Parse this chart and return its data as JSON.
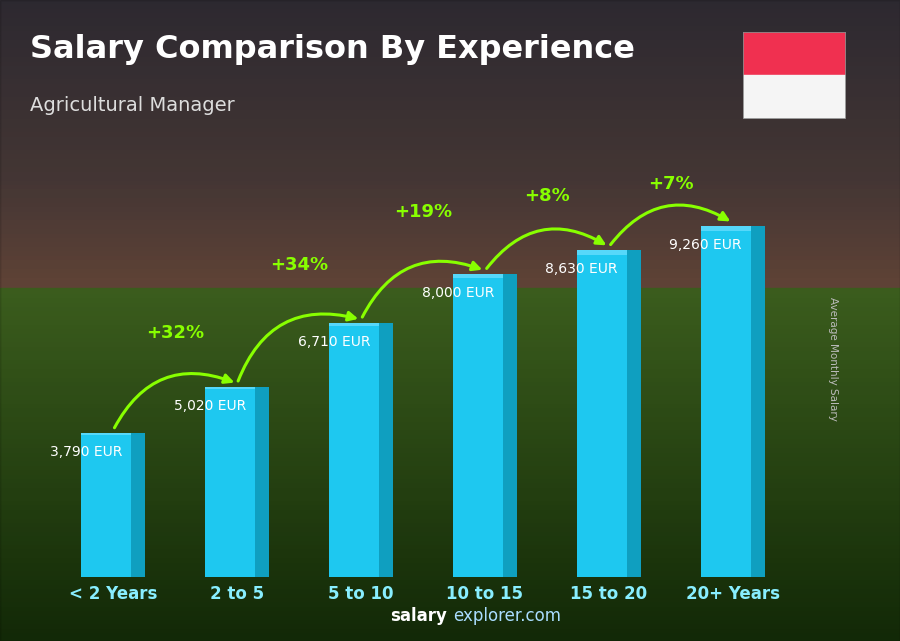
{
  "title": "Salary Comparison By Experience",
  "subtitle": "Agricultural Manager",
  "categories": [
    "< 2 Years",
    "2 to 5",
    "5 to 10",
    "10 to 15",
    "15 to 20",
    "20+ Years"
  ],
  "values": [
    3790,
    5020,
    6710,
    8000,
    8630,
    9260
  ],
  "bar_color": "#1EC8F0",
  "bar_color_dark": "#0F9FC0",
  "bar_color_light": "#6EE0FF",
  "value_labels": [
    "3,790 EUR",
    "5,020 EUR",
    "6,710 EUR",
    "8,000 EUR",
    "8,630 EUR",
    "9,260 EUR"
  ],
  "pct_labels": [
    "+32%",
    "+34%",
    "+19%",
    "+8%",
    "+7%"
  ],
  "pct_color": "#88FF00",
  "value_label_color": "#DDFFDD",
  "title_color": "#ffffff",
  "subtitle_color": "#dddddd",
  "watermark_bold": "salary",
  "watermark_rest": "explorer.com",
  "ylabel": "Average Monthly Salary",
  "ylim": [
    0,
    11500
  ],
  "bar_width": 0.52,
  "flag_red": "#F03050",
  "flag_white": "#F5F5F5",
  "xtick_color": "#88EEFF",
  "sky_top": "#5a5060",
  "sky_mid": "#7a6555",
  "ground_top": "#6a8040",
  "ground_bot": "#304020"
}
